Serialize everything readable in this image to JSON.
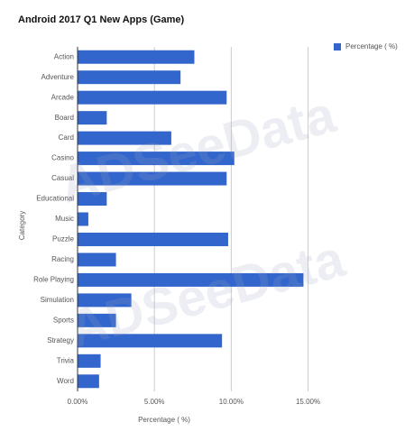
{
  "chart_data": {
    "type": "hbar",
    "title": "Android 2017 Q1 New Apps (Game)",
    "x_label": "Percentage ( %)",
    "y_label": "Category",
    "watermark": "ADSeeData",
    "categories": [
      "Action",
      "Adventure",
      "Arcade",
      "Board",
      "Card",
      "Casino",
      "Casual",
      "Educational",
      "Music",
      "Puzzle",
      "Racing",
      "Role Playing",
      "Simulation",
      "Sports",
      "Strategy",
      "Trivia",
      "Word"
    ],
    "series": [
      {
        "name": "Percentage ( %)",
        "color": "#3366cc",
        "values": [
          7.6,
          6.7,
          9.7,
          1.9,
          6.1,
          10.2,
          9.7,
          1.9,
          0.7,
          9.8,
          2.5,
          14.7,
          3.5,
          2.5,
          9.4,
          1.5,
          1.4
        ]
      }
    ],
    "xlim": [
      0,
      16.2
    ],
    "xticks": [
      {
        "value": 0,
        "label": "0.00%"
      },
      {
        "value": 5,
        "label": "5.00%"
      },
      {
        "value": 10,
        "label": "10.00%"
      },
      {
        "value": 15,
        "label": "15.00%"
      }
    ],
    "grid": true,
    "legend": "top-right"
  }
}
